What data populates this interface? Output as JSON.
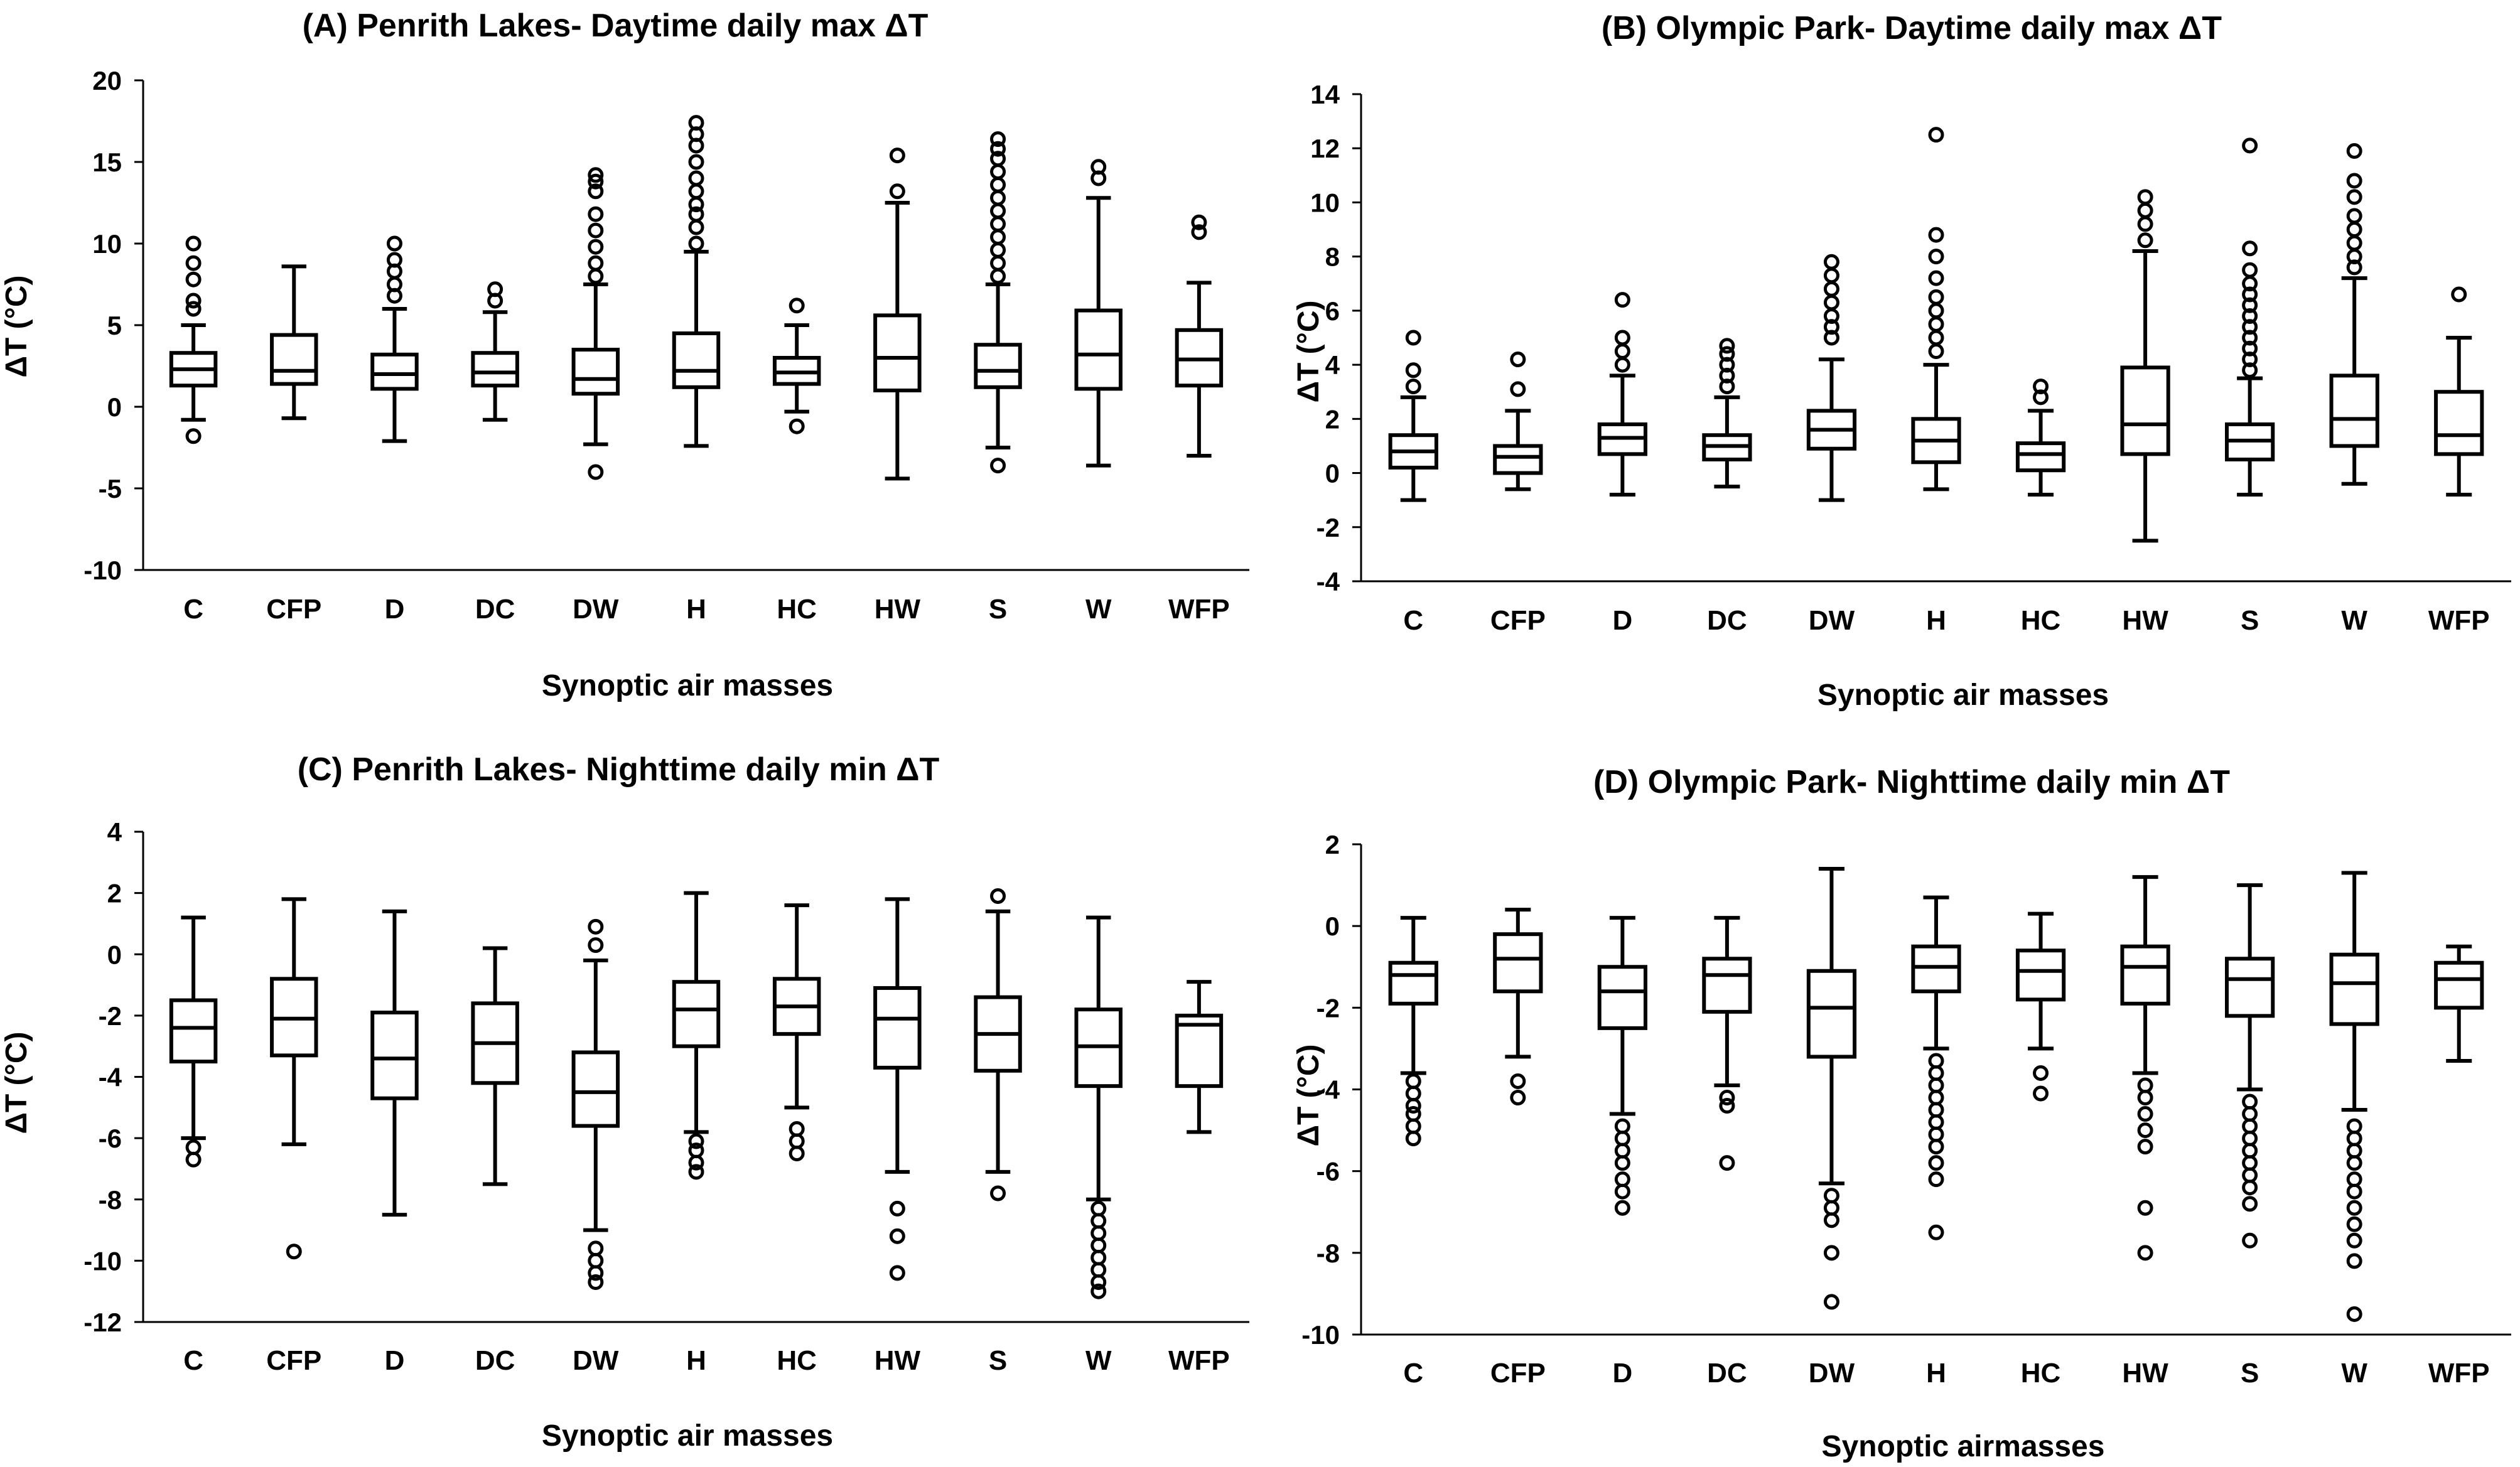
{
  "chart_data": [
    {
      "type": "box",
      "title": "(A) Penrith Lakes- Daytime daily max ΔT",
      "ylabel": "ΔT (°C)",
      "xlabel": "Synoptic air masses",
      "ylim": [
        -10,
        20
      ],
      "yticks": [
        -10,
        -5,
        0,
        5,
        10,
        15,
        20
      ],
      "categories": [
        "C",
        "CFP",
        "D",
        "DC",
        "DW",
        "H",
        "HC",
        "HW",
        "S",
        "W",
        "WFP"
      ],
      "boxes": [
        {
          "whisker_low": -0.8,
          "q1": 1.3,
          "median": 2.3,
          "q3": 3.3,
          "whisker_high": 5.0,
          "outliers": [
            -1.8,
            6.0,
            6.5,
            7.8,
            8.8,
            10.0
          ]
        },
        {
          "whisker_low": -0.7,
          "q1": 1.4,
          "median": 2.2,
          "q3": 4.4,
          "whisker_high": 8.6,
          "outliers": []
        },
        {
          "whisker_low": -2.1,
          "q1": 1.1,
          "median": 2.0,
          "q3": 3.2,
          "whisker_high": 6.0,
          "outliers": [
            6.8,
            7.5,
            8.3,
            9.0,
            10.0
          ]
        },
        {
          "whisker_low": -0.8,
          "q1": 1.3,
          "median": 2.1,
          "q3": 3.3,
          "whisker_high": 5.8,
          "outliers": [
            6.5,
            7.2
          ]
        },
        {
          "whisker_low": -2.3,
          "q1": 0.8,
          "median": 1.7,
          "q3": 3.5,
          "whisker_high": 7.5,
          "outliers": [
            -4.0,
            8.0,
            8.8,
            9.8,
            10.8,
            11.8,
            13.2,
            13.8,
            14.2
          ]
        },
        {
          "whisker_low": -2.4,
          "q1": 1.2,
          "median": 2.2,
          "q3": 4.5,
          "whisker_high": 9.5,
          "outliers": [
            10.0,
            11.0,
            11.8,
            12.4,
            13.2,
            14.0,
            15.0,
            16.0,
            16.7,
            17.4
          ]
        },
        {
          "whisker_low": -0.3,
          "q1": 1.4,
          "median": 2.1,
          "q3": 3.0,
          "whisker_high": 5.0,
          "outliers": [
            -1.2,
            6.2
          ]
        },
        {
          "whisker_low": -4.4,
          "q1": 1.0,
          "median": 3.0,
          "q3": 5.6,
          "whisker_high": 12.5,
          "outliers": [
            13.2,
            15.4
          ]
        },
        {
          "whisker_low": -2.5,
          "q1": 1.2,
          "median": 2.2,
          "q3": 3.8,
          "whisker_high": 7.5,
          "outliers": [
            -3.6,
            8.0,
            8.8,
            9.6,
            10.4,
            11.2,
            12.0,
            12.8,
            13.6,
            14.4,
            15.2,
            15.8,
            16.4
          ]
        },
        {
          "whisker_low": -3.6,
          "q1": 1.1,
          "median": 3.2,
          "q3": 5.9,
          "whisker_high": 12.8,
          "outliers": [
            14.0,
            14.7
          ]
        },
        {
          "whisker_low": -3.0,
          "q1": 1.3,
          "median": 2.9,
          "q3": 4.7,
          "whisker_high": 7.6,
          "outliers": [
            10.7,
            11.3
          ]
        }
      ]
    },
    {
      "type": "box",
      "title": "(B) Olympic Park- Daytime daily max ΔT",
      "ylabel": "ΔT (°C)",
      "xlabel": "Synoptic air masses",
      "ylim": [
        -4,
        14
      ],
      "yticks": [
        -4,
        -2,
        0,
        2,
        4,
        6,
        8,
        10,
        12,
        14
      ],
      "categories": [
        "C",
        "CFP",
        "D",
        "DC",
        "DW",
        "H",
        "HC",
        "HW",
        "S",
        "W",
        "WFP"
      ],
      "boxes": [
        {
          "whisker_low": -1.0,
          "q1": 0.2,
          "median": 0.8,
          "q3": 1.4,
          "whisker_high": 2.8,
          "outliers": [
            3.2,
            3.8,
            5.0
          ]
        },
        {
          "whisker_low": -0.6,
          "q1": 0.0,
          "median": 0.6,
          "q3": 1.0,
          "whisker_high": 2.3,
          "outliers": [
            3.1,
            4.2
          ]
        },
        {
          "whisker_low": -0.8,
          "q1": 0.7,
          "median": 1.3,
          "q3": 1.8,
          "whisker_high": 3.6,
          "outliers": [
            4.0,
            4.5,
            5.0,
            6.4
          ]
        },
        {
          "whisker_low": -0.5,
          "q1": 0.5,
          "median": 1.0,
          "q3": 1.4,
          "whisker_high": 2.8,
          "outliers": [
            3.2,
            3.6,
            4.0,
            4.4,
            4.7
          ]
        },
        {
          "whisker_low": -1.0,
          "q1": 0.9,
          "median": 1.6,
          "q3": 2.3,
          "whisker_high": 4.2,
          "outliers": [
            5.0,
            5.4,
            5.8,
            6.3,
            6.8,
            7.3,
            7.8
          ]
        },
        {
          "whisker_low": -0.6,
          "q1": 0.4,
          "median": 1.2,
          "q3": 2.0,
          "whisker_high": 4.0,
          "outliers": [
            4.5,
            5.0,
            5.5,
            6.0,
            6.5,
            7.2,
            8.0,
            8.8,
            12.5
          ]
        },
        {
          "whisker_low": -0.8,
          "q1": 0.1,
          "median": 0.7,
          "q3": 1.1,
          "whisker_high": 2.3,
          "outliers": [
            2.8,
            3.2
          ]
        },
        {
          "whisker_low": -2.5,
          "q1": 0.7,
          "median": 1.8,
          "q3": 3.9,
          "whisker_high": 8.2,
          "outliers": [
            8.6,
            9.2,
            9.7,
            10.2
          ]
        },
        {
          "whisker_low": -0.8,
          "q1": 0.5,
          "median": 1.2,
          "q3": 1.8,
          "whisker_high": 3.5,
          "outliers": [
            3.8,
            4.2,
            4.6,
            5.0,
            5.4,
            5.8,
            6.2,
            6.6,
            7.0,
            7.5,
            8.3,
            12.1
          ]
        },
        {
          "whisker_low": -0.4,
          "q1": 1.0,
          "median": 2.0,
          "q3": 3.6,
          "whisker_high": 7.2,
          "outliers": [
            7.6,
            8.0,
            8.5,
            9.0,
            9.5,
            10.2,
            10.8,
            11.9
          ]
        },
        {
          "whisker_low": -0.8,
          "q1": 0.7,
          "median": 1.4,
          "q3": 3.0,
          "whisker_high": 5.0,
          "outliers": [
            6.6
          ]
        }
      ]
    },
    {
      "type": "box",
      "title": "(C) Penrith Lakes- Nighttime daily min ΔT",
      "ylabel": "ΔT (°C)",
      "xlabel": "Synoptic air masses",
      "ylim": [
        -12,
        4
      ],
      "yticks": [
        -12,
        -10,
        -8,
        -6,
        -4,
        -2,
        0,
        2,
        4
      ],
      "categories": [
        "C",
        "CFP",
        "D",
        "DC",
        "DW",
        "H",
        "HC",
        "HW",
        "S",
        "W",
        "WFP"
      ],
      "boxes": [
        {
          "whisker_low": -6.0,
          "q1": -3.5,
          "median": -2.4,
          "q3": -1.5,
          "whisker_high": 1.2,
          "outliers": [
            -6.3,
            -6.7
          ]
        },
        {
          "whisker_low": -6.2,
          "q1": -3.3,
          "median": -2.1,
          "q3": -0.8,
          "whisker_high": 1.8,
          "outliers": [
            -9.7
          ]
        },
        {
          "whisker_low": -8.5,
          "q1": -4.7,
          "median": -3.4,
          "q3": -1.9,
          "whisker_high": 1.4,
          "outliers": []
        },
        {
          "whisker_low": -7.5,
          "q1": -4.2,
          "median": -2.9,
          "q3": -1.6,
          "whisker_high": 0.2,
          "outliers": []
        },
        {
          "whisker_low": -9.0,
          "q1": -5.6,
          "median": -4.5,
          "q3": -3.2,
          "whisker_high": -0.2,
          "outliers": [
            0.3,
            0.9,
            -9.6,
            -10.0,
            -10.4,
            -10.7
          ]
        },
        {
          "whisker_low": -5.8,
          "q1": -3.0,
          "median": -1.8,
          "q3": -0.9,
          "whisker_high": 2.0,
          "outliers": [
            -6.1,
            -6.4,
            -6.8,
            -7.1
          ]
        },
        {
          "whisker_low": -5.0,
          "q1": -2.6,
          "median": -1.7,
          "q3": -0.8,
          "whisker_high": 1.6,
          "outliers": [
            -5.7,
            -6.1,
            -6.5
          ]
        },
        {
          "whisker_low": -7.1,
          "q1": -3.7,
          "median": -2.1,
          "q3": -1.1,
          "whisker_high": 1.8,
          "outliers": [
            -8.3,
            -9.2,
            -10.4
          ]
        },
        {
          "whisker_low": -7.1,
          "q1": -3.8,
          "median": -2.6,
          "q3": -1.4,
          "whisker_high": 1.4,
          "outliers": [
            1.9,
            -7.8
          ]
        },
        {
          "whisker_low": -8.0,
          "q1": -4.3,
          "median": -3.0,
          "q3": -1.8,
          "whisker_high": 1.2,
          "outliers": [
            -8.3,
            -8.7,
            -9.1,
            -9.5,
            -9.9,
            -10.3,
            -10.7,
            -11.0
          ]
        },
        {
          "whisker_low": -5.8,
          "q1": -4.3,
          "median": -2.3,
          "q3": -2.0,
          "whisker_high": -0.9,
          "outliers": []
        }
      ]
    },
    {
      "type": "box",
      "title": "(D) Olympic Park- Nighttime daily min ΔT",
      "ylabel": "ΔT (°C)",
      "xlabel": "Synoptic airmasses",
      "ylim": [
        -10,
        2
      ],
      "yticks": [
        -10,
        -8,
        -6,
        -4,
        -2,
        0,
        2
      ],
      "categories": [
        "C",
        "CFP",
        "D",
        "DC",
        "DW",
        "H",
        "HC",
        "HW",
        "S",
        "W",
        "WFP"
      ],
      "boxes": [
        {
          "whisker_low": -3.6,
          "q1": -1.9,
          "median": -1.2,
          "q3": -0.9,
          "whisker_high": 0.2,
          "outliers": [
            -3.8,
            -4.1,
            -4.4,
            -4.6,
            -4.9,
            -5.2
          ]
        },
        {
          "whisker_low": -3.2,
          "q1": -1.6,
          "median": -0.8,
          "q3": -0.2,
          "whisker_high": 0.4,
          "outliers": [
            -3.8,
            -4.2
          ]
        },
        {
          "whisker_low": -4.6,
          "q1": -2.5,
          "median": -1.6,
          "q3": -1.0,
          "whisker_high": 0.2,
          "outliers": [
            -4.9,
            -5.2,
            -5.5,
            -5.8,
            -6.2,
            -6.5,
            -6.9
          ]
        },
        {
          "whisker_low": -3.9,
          "q1": -2.1,
          "median": -1.2,
          "q3": -0.8,
          "whisker_high": 0.2,
          "outliers": [
            -4.2,
            -4.4,
            -5.8
          ]
        },
        {
          "whisker_low": -6.3,
          "q1": -3.2,
          "median": -2.0,
          "q3": -1.1,
          "whisker_high": 1.4,
          "outliers": [
            -6.6,
            -6.9,
            -7.2,
            -8.0,
            -9.2
          ]
        },
        {
          "whisker_low": -3.0,
          "q1": -1.6,
          "median": -1.0,
          "q3": -0.5,
          "whisker_high": 0.7,
          "outliers": [
            -3.3,
            -3.6,
            -3.9,
            -4.2,
            -4.5,
            -4.8,
            -5.1,
            -5.4,
            -5.8,
            -6.2,
            -7.5
          ]
        },
        {
          "whisker_low": -3.0,
          "q1": -1.8,
          "median": -1.1,
          "q3": -0.6,
          "whisker_high": 0.3,
          "outliers": [
            -3.6,
            -4.1
          ]
        },
        {
          "whisker_low": -3.6,
          "q1": -1.9,
          "median": -1.0,
          "q3": -0.5,
          "whisker_high": 1.2,
          "outliers": [
            -3.9,
            -4.2,
            -4.6,
            -5.0,
            -5.4,
            -6.9,
            -8.0
          ]
        },
        {
          "whisker_low": -4.0,
          "q1": -2.2,
          "median": -1.3,
          "q3": -0.8,
          "whisker_high": 1.0,
          "outliers": [
            -4.3,
            -4.6,
            -4.9,
            -5.2,
            -5.5,
            -5.8,
            -6.1,
            -6.4,
            -6.8,
            -7.7
          ]
        },
        {
          "whisker_low": -4.5,
          "q1": -2.4,
          "median": -1.4,
          "q3": -0.7,
          "whisker_high": 1.3,
          "outliers": [
            -4.9,
            -5.2,
            -5.5,
            -5.8,
            -6.2,
            -6.5,
            -6.9,
            -7.3,
            -7.7,
            -8.2,
            -9.5
          ]
        },
        {
          "whisker_low": -3.3,
          "q1": -2.0,
          "median": -1.3,
          "q3": -0.9,
          "whisker_high": -0.5,
          "outliers": []
        }
      ]
    }
  ]
}
